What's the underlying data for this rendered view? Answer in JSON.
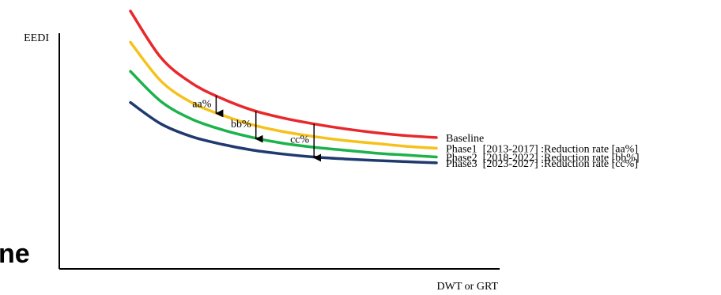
{
  "chart_data": {
    "type": "line",
    "xlabel": "DWT or GRT",
    "ylabel": "EEDI",
    "grid": false,
    "x": [
      0,
      0.1,
      0.2,
      0.3,
      0.4,
      0.5,
      0.6,
      0.7,
      0.8,
      0.9,
      1.0
    ],
    "series": [
      {
        "name": "Baseline",
        "color": "#e8282b",
        "values": [
          1.0,
          0.76,
          0.63,
          0.55,
          0.49,
          0.45,
          0.42,
          0.395,
          0.375,
          0.36,
          0.35
        ]
      },
      {
        "name": "Phase1  [2013-2017] :Reduction rate [aa%]",
        "color": "#f5c21b",
        "values": [
          0.84,
          0.64,
          0.53,
          0.465,
          0.415,
          0.38,
          0.355,
          0.335,
          0.32,
          0.305,
          0.295
        ]
      },
      {
        "name": "Phase2  [2018-2022] :Reduction rate [bb%]",
        "color": "#1db24b",
        "values": [
          0.69,
          0.535,
          0.445,
          0.39,
          0.35,
          0.32,
          0.3,
          0.285,
          0.27,
          0.26,
          0.25
        ]
      },
      {
        "name": "Phase3  [2023-2027] :Reduction rate [cc%]",
        "color": "#1f3a6e",
        "values": [
          0.53,
          0.42,
          0.355,
          0.315,
          0.285,
          0.265,
          0.25,
          0.24,
          0.232,
          0.226,
          0.22
        ]
      }
    ],
    "annotations": [
      {
        "text": "aa%",
        "x": 0.28,
        "from": "Baseline",
        "to": "Phase1  [2013-2017] :Reduction rate [aa%]"
      },
      {
        "text": "bb%",
        "x": 0.41,
        "from": "Baseline",
        "to": "Phase2  [2018-2022] :Reduction rate [bb%]"
      },
      {
        "text": "cc%",
        "x": 0.6,
        "from": "Baseline",
        "to": "Phase3  [2023-2027] :Reduction rate [cc%]"
      }
    ]
  },
  "side_text": "ne"
}
